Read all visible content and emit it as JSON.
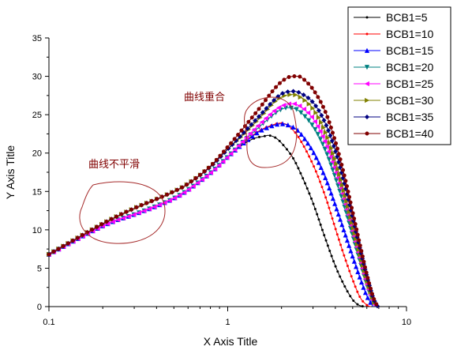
{
  "chart_data": {
    "type": "line",
    "title": "",
    "xlabel": "X Axis Title",
    "ylabel": "Y Axis Title",
    "xscale": "log",
    "xlim": [
      0.1,
      10
    ],
    "ylim": [
      0,
      35
    ],
    "x_ticks": [
      "0.1",
      "1",
      "10"
    ],
    "y_ticks": [
      "0",
      "5",
      "10",
      "15",
      "20",
      "25",
      "30",
      "35"
    ],
    "grid": false,
    "legend_position": "top-right",
    "series": [
      {
        "name": "BCB1=5",
        "color": "#000000",
        "marker": "dot",
        "x": [
          0.1,
          0.2,
          0.3,
          0.4,
          0.5,
          0.6,
          0.8,
          1.0,
          1.2,
          1.4,
          1.6,
          1.7,
          1.85,
          2.0,
          2.3,
          2.6,
          3.0,
          3.5,
          4.0,
          4.5,
          5.0,
          5.4,
          5.8
        ],
        "y": [
          6.8,
          10.5,
          12.0,
          13.1,
          14.1,
          15.2,
          17.4,
          19.5,
          21.0,
          21.9,
          22.2,
          22.3,
          22.0,
          21.3,
          19.5,
          17.0,
          13.5,
          9.0,
          5.3,
          2.7,
          0.9,
          0.2,
          0.0
        ]
      },
      {
        "name": "BCB1=10",
        "color": "#ff0000",
        "marker": "dot",
        "x": [
          0.1,
          0.2,
          0.3,
          0.4,
          0.5,
          0.6,
          0.8,
          1.0,
          1.2,
          1.5,
          1.8,
          2.0,
          2.2,
          2.5,
          3.0,
          3.5,
          4.0,
          4.5,
          5.0,
          5.5,
          6.0,
          6.3
        ],
        "y": [
          6.8,
          10.5,
          12.0,
          13.1,
          14.1,
          15.2,
          17.4,
          19.5,
          21.2,
          22.9,
          23.7,
          23.9,
          23.5,
          22.0,
          18.5,
          14.5,
          10.2,
          6.5,
          3.5,
          1.2,
          0.2,
          0.0
        ]
      },
      {
        "name": "BCB1=15",
        "color": "#0000ff",
        "marker": "triangle-up",
        "x": [
          0.1,
          0.2,
          0.3,
          0.4,
          0.5,
          0.6,
          0.8,
          1.0,
          1.2,
          1.5,
          1.8,
          2.0,
          2.2,
          2.5,
          3.0,
          3.5,
          4.0,
          4.5,
          5.0,
          5.5,
          6.0,
          6.5
        ],
        "y": [
          6.8,
          10.5,
          12.0,
          13.1,
          14.1,
          15.2,
          17.4,
          19.5,
          21.1,
          22.8,
          23.6,
          23.8,
          23.6,
          22.8,
          20.2,
          16.9,
          13.2,
          9.7,
          6.5,
          3.7,
          1.4,
          0.0
        ]
      },
      {
        "name": "BCB1=20",
        "color": "#008080",
        "marker": "triangle-down",
        "x": [
          0.1,
          0.2,
          0.3,
          0.4,
          0.5,
          0.6,
          0.8,
          1.0,
          1.2,
          1.5,
          1.8,
          2.0,
          2.2,
          2.5,
          3.0,
          3.5,
          4.0,
          4.5,
          5.0,
          5.5,
          6.0,
          6.5,
          6.7
        ],
        "y": [
          6.8,
          10.5,
          12.0,
          13.1,
          14.1,
          15.2,
          17.4,
          19.5,
          21.3,
          23.4,
          25.0,
          25.7,
          25.9,
          25.5,
          23.5,
          20.5,
          16.8,
          13.0,
          9.2,
          5.8,
          2.8,
          0.6,
          0.0
        ]
      },
      {
        "name": "BCB1=25",
        "color": "#ff00ff",
        "marker": "triangle-left",
        "x": [
          0.1,
          0.2,
          0.3,
          0.4,
          0.5,
          0.6,
          0.8,
          1.0,
          1.2,
          1.5,
          1.8,
          2.0,
          2.2,
          2.5,
          3.0,
          3.5,
          4.0,
          4.5,
          5.0,
          5.5,
          6.0,
          6.5,
          6.8
        ],
        "y": [
          6.8,
          10.5,
          12.0,
          13.1,
          14.1,
          15.2,
          17.4,
          19.5,
          21.4,
          23.7,
          25.4,
          26.1,
          26.4,
          26.2,
          24.5,
          21.5,
          17.8,
          13.8,
          9.8,
          6.2,
          3.0,
          0.7,
          0.0
        ]
      },
      {
        "name": "BCB1=30",
        "color": "#808000",
        "marker": "triangle-right",
        "x": [
          0.1,
          0.2,
          0.3,
          0.4,
          0.5,
          0.6,
          0.8,
          1.0,
          1.2,
          1.5,
          1.8,
          2.0,
          2.2,
          2.5,
          3.0,
          3.5,
          4.0,
          4.5,
          5.0,
          5.5,
          6.0,
          6.5,
          6.8
        ],
        "y": [
          6.8,
          10.8,
          12.8,
          14.0,
          15.0,
          16.0,
          18.2,
          20.5,
          22.2,
          24.5,
          26.5,
          27.3,
          27.6,
          27.4,
          25.8,
          22.9,
          19.0,
          14.8,
          10.6,
          6.8,
          3.5,
          0.9,
          0.0
        ]
      },
      {
        "name": "BCB1=35",
        "color": "#000080",
        "marker": "diamond",
        "x": [
          0.1,
          0.2,
          0.3,
          0.4,
          0.5,
          0.6,
          0.8,
          1.0,
          1.2,
          1.5,
          1.8,
          2.0,
          2.2,
          2.5,
          3.0,
          3.5,
          4.0,
          4.5,
          5.0,
          5.5,
          6.0,
          6.5,
          6.9
        ],
        "y": [
          6.8,
          10.8,
          12.8,
          14.0,
          15.0,
          16.0,
          18.2,
          20.5,
          22.4,
          24.8,
          26.8,
          27.7,
          28.0,
          27.9,
          26.6,
          24.0,
          20.3,
          16.0,
          11.6,
          7.5,
          4.0,
          1.2,
          0.0
        ]
      },
      {
        "name": "BCB1=40",
        "color": "#800000",
        "marker": "circle",
        "x": [
          0.1,
          0.2,
          0.3,
          0.4,
          0.5,
          0.6,
          0.8,
          1.0,
          1.2,
          1.5,
          1.8,
          2.0,
          2.2,
          2.4,
          2.6,
          3.0,
          3.5,
          4.0,
          4.5,
          5.0,
          5.5,
          6.0,
          6.5,
          6.9
        ],
        "y": [
          6.8,
          10.8,
          12.8,
          14.0,
          15.0,
          16.0,
          18.3,
          20.8,
          23.0,
          25.8,
          28.2,
          29.3,
          29.9,
          30.0,
          29.8,
          28.3,
          25.5,
          21.5,
          17.0,
          12.3,
          8.0,
          4.2,
          1.3,
          0.0
        ]
      }
    ],
    "annotations": [
      {
        "text": "曲线不平滑"
      },
      {
        "text": "曲线重合"
      }
    ]
  }
}
